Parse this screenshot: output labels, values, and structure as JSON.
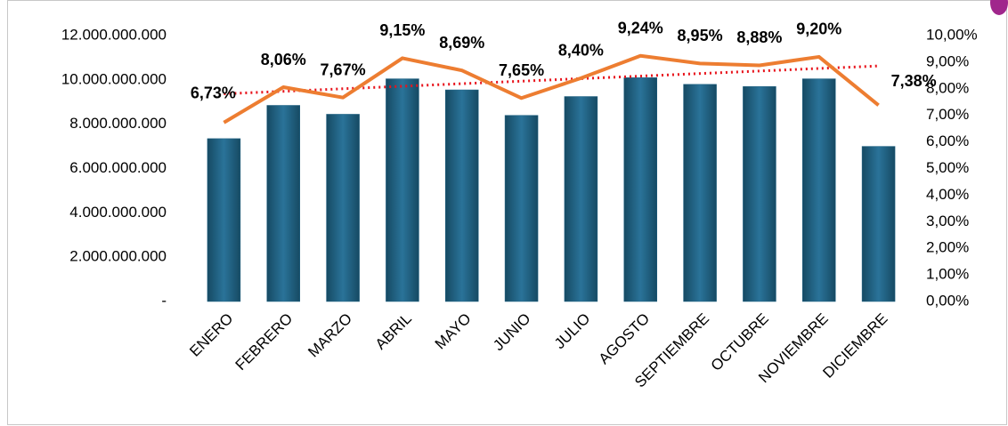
{
  "chart_data": {
    "type": "bar_line",
    "categories": [
      "ENERO",
      "FEBRERO",
      "MARZO",
      "ABRIL",
      "MAYO",
      "JUNIO",
      "JULIO",
      "AGOSTO",
      "SEPTIEMBRE",
      "OCTUBRE",
      "NOVIEMBRE",
      "DICIEMBRE"
    ],
    "series": [
      {
        "type": "bar",
        "color": "#1f6283",
        "values": [
          7350000000,
          8850000000,
          8450000000,
          10050000000,
          9550000000,
          8400000000,
          9250000000,
          10100000000,
          9800000000,
          9700000000,
          10050000000,
          7000000000
        ]
      },
      {
        "type": "line",
        "axis": "y2",
        "color": "#ed7d31",
        "trendline": true,
        "trendline_color": "#e8141c",
        "values": [
          6.73,
          8.06,
          7.67,
          9.15,
          8.69,
          7.65,
          8.4,
          9.24,
          8.95,
          8.88,
          9.2,
          7.38
        ],
        "value_labels": [
          "6,73%",
          "8,06%",
          "7,67%",
          "9,15%",
          "8,69%",
          "7,65%",
          "8,40%",
          "9,24%",
          "8,95%",
          "8,88%",
          "9,20%",
          "7,38%"
        ]
      }
    ],
    "ylim": [
      0,
      12000000000
    ],
    "yticks": [
      {
        "value": 0,
        "label": "-"
      },
      {
        "value": 2000000000,
        "label": "2.000.000.000"
      },
      {
        "value": 4000000000,
        "label": "4.000.000.000"
      },
      {
        "value": 6000000000,
        "label": "6.000.000.000"
      },
      {
        "value": 8000000000,
        "label": "8.000.000.000"
      },
      {
        "value": 10000000000,
        "label": "10.000.000.000"
      },
      {
        "value": 12000000000,
        "label": "12.000.000.000"
      }
    ],
    "y2lim": [
      0,
      10
    ],
    "y2ticks": [
      {
        "value": 0,
        "label": "0,00%"
      },
      {
        "value": 1,
        "label": "1,00%"
      },
      {
        "value": 2,
        "label": "2,00%"
      },
      {
        "value": 3,
        "label": "3,00%"
      },
      {
        "value": 4,
        "label": "4,00%"
      },
      {
        "value": 5,
        "label": "5,00%"
      },
      {
        "value": 6,
        "label": "6,00%"
      },
      {
        "value": 7,
        "label": "7,00%"
      },
      {
        "value": 8,
        "label": "8,00%"
      },
      {
        "value": 9,
        "label": "9,00%"
      },
      {
        "value": 10,
        "label": "10,00%"
      }
    ],
    "grid": false
  }
}
